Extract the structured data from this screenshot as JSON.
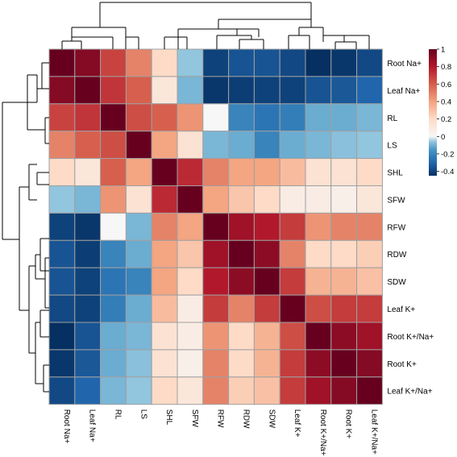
{
  "chart_data": {
    "type": "heatmap",
    "labels": [
      "Root Na+",
      "Leaf Na+",
      "RL",
      "LS",
      "SHL",
      "SFW",
      "RFW",
      "RDW",
      "SDW",
      "Leaf K+",
      "Root K+/Na+",
      "Root K+",
      "Leaf K+/Na+"
    ],
    "matrix": [
      [
        1.0,
        0.92,
        0.68,
        0.5,
        0.2,
        -0.05,
        -0.4,
        -0.35,
        -0.35,
        -0.38,
        -0.45,
        -0.43,
        -0.38
      ],
      [
        0.92,
        1.0,
        0.72,
        0.6,
        0.12,
        -0.08,
        -0.43,
        -0.41,
        -0.4,
        -0.4,
        -0.35,
        -0.34,
        -0.3
      ],
      [
        0.68,
        0.72,
        1.0,
        0.65,
        0.6,
        0.45,
        0.0,
        -0.2,
        -0.25,
        -0.22,
        -0.1,
        -0.1,
        -0.08
      ],
      [
        0.5,
        0.6,
        0.65,
        1.0,
        0.4,
        0.15,
        -0.08,
        -0.1,
        -0.2,
        -0.1,
        -0.08,
        -0.06,
        -0.05
      ],
      [
        0.2,
        0.12,
        0.6,
        0.4,
        1.0,
        0.75,
        0.5,
        0.4,
        0.4,
        0.32,
        0.15,
        0.15,
        0.2
      ],
      [
        -0.05,
        -0.08,
        0.45,
        0.15,
        0.75,
        1.0,
        0.4,
        0.28,
        0.2,
        0.08,
        0.08,
        0.06,
        0.12
      ],
      [
        -0.4,
        -0.43,
        0.0,
        -0.08,
        0.5,
        0.4,
        1.0,
        0.85,
        0.8,
        0.7,
        0.45,
        0.5,
        0.5
      ],
      [
        -0.35,
        -0.41,
        -0.2,
        -0.1,
        0.4,
        0.28,
        0.85,
        1.0,
        0.9,
        0.5,
        0.2,
        0.2,
        0.25
      ],
      [
        -0.35,
        -0.4,
        -0.25,
        -0.2,
        0.4,
        0.2,
        0.8,
        0.9,
        1.0,
        0.7,
        0.35,
        0.35,
        0.3
      ],
      [
        -0.38,
        -0.4,
        -0.22,
        -0.1,
        0.32,
        0.08,
        0.7,
        0.5,
        0.7,
        1.0,
        0.65,
        0.7,
        0.7
      ],
      [
        -0.45,
        -0.35,
        -0.1,
        -0.08,
        0.15,
        0.08,
        0.45,
        0.2,
        0.35,
        0.65,
        1.0,
        0.9,
        0.85
      ],
      [
        -0.43,
        -0.34,
        -0.1,
        -0.06,
        0.15,
        0.06,
        0.5,
        0.2,
        0.35,
        0.7,
        0.9,
        1.0,
        0.92
      ],
      [
        -0.38,
        -0.3,
        -0.08,
        -0.05,
        0.2,
        0.12,
        0.5,
        0.25,
        0.3,
        0.7,
        0.85,
        0.92,
        1.0
      ]
    ],
    "colorbar": {
      "min": -0.45,
      "max": 1.0,
      "ticks": [
        "1",
        "0.8",
        "0.6",
        "0.4",
        "0.2",
        "0",
        "-0.2",
        "-0.4"
      ],
      "tick_values": [
        1,
        0.8,
        0.6,
        0.4,
        0.2,
        0,
        -0.2,
        -0.4
      ],
      "colors": {
        "low": "#053061",
        "mid": "#f7f7f7",
        "high": "#67001f"
      }
    },
    "dendrogram": true,
    "grid_color": "#a0a0a0"
  }
}
